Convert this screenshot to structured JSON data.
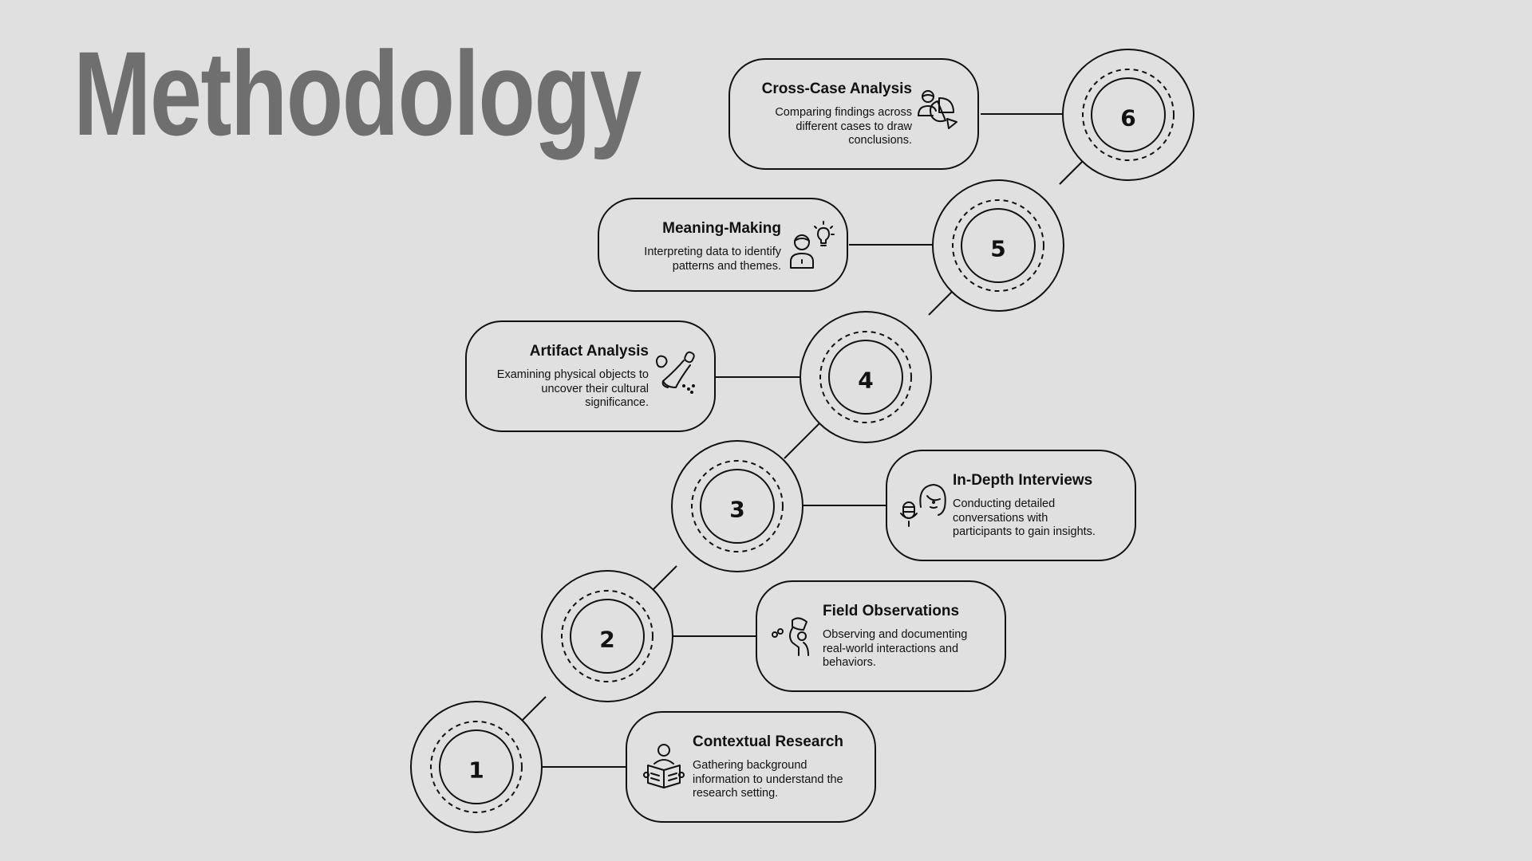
{
  "page": {
    "title": "Methodology"
  },
  "steps": [
    {
      "number": "1",
      "title": "Contextual Research",
      "description": "Gathering background information to understand the research setting.",
      "icon": "book-reader-icon"
    },
    {
      "number": "2",
      "title": "Field Observations",
      "description": "Observing and documenting real-world interactions and behaviors.",
      "icon": "observer-icon"
    },
    {
      "number": "3",
      "title": "In-Depth Interviews",
      "description": "Conducting detailed conversations with participants to gain insights.",
      "icon": "interview-microphone-icon"
    },
    {
      "number": "4",
      "title": "Artifact Analysis",
      "description": "Examining physical objects to uncover their cultural significance.",
      "icon": "excavation-brush-icon"
    },
    {
      "number": "5",
      "title": "Meaning-Making",
      "description": "Interpreting data to identify patterns and themes.",
      "icon": "person-lightbulb-icon"
    },
    {
      "number": "6",
      "title": "Cross-Case Analysis",
      "description": "Comparing findings across different cases to draw conclusions.",
      "icon": "person-pie-chart-icon"
    }
  ],
  "colors": {
    "background": "#e0e0e0",
    "title": "#6f6f6f",
    "stroke": "#111111"
  }
}
